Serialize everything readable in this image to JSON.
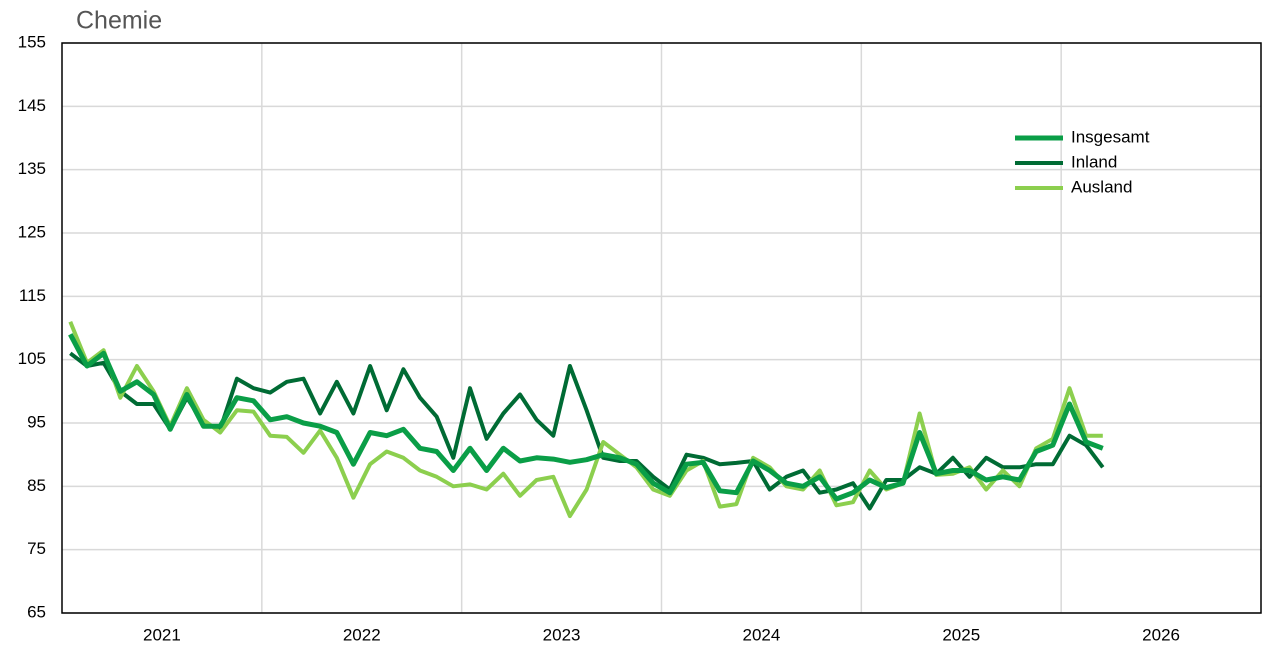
{
  "chart_data": {
    "type": "line",
    "title": "Chemie",
    "x_labels": [
      "2021",
      "2022",
      "2023",
      "2024",
      "2025",
      "2026"
    ],
    "ylim": [
      65,
      155
    ],
    "yticks": [
      65,
      75,
      85,
      95,
      105,
      115,
      125,
      135,
      145,
      155
    ],
    "grid": true,
    "legend": "upper right",
    "series": [
      {
        "name": "Insgesamt",
        "color": "#0a9e47",
        "values": [
          109,
          104,
          106,
          100,
          101.5,
          99.5,
          94,
          99.5,
          94.5,
          94.5,
          99,
          98.5,
          95.5,
          96,
          95,
          94.5,
          93.5,
          88.5,
          93.5,
          93,
          94,
          91,
          90.5,
          87.5,
          91,
          87.5,
          91,
          89,
          89.5,
          89.3,
          88.8,
          89.2,
          90,
          89.5,
          88.5,
          85.5,
          84,
          88.5,
          88.8,
          84.3,
          84,
          89,
          87.5,
          85.5,
          85,
          86.5,
          83,
          84,
          86,
          84.8,
          85.5,
          93.5,
          87,
          87.5,
          87.5,
          86,
          86.5,
          86,
          90.5,
          91.5,
          98,
          92,
          91
        ]
      },
      {
        "name": "Inland",
        "color": "#006b34",
        "values": [
          106,
          104,
          104.5,
          100,
          98,
          98,
          94,
          99,
          95,
          94,
          102,
          100.5,
          99.8,
          101.5,
          102,
          96.5,
          101.5,
          96.5,
          104,
          97,
          103.5,
          99,
          96,
          89.5,
          100.5,
          92.5,
          96.5,
          99.5,
          95.5,
          93,
          104,
          97,
          89.5,
          89,
          89,
          86.5,
          84.5,
          90,
          89.5,
          88.5,
          88.7,
          89,
          84.5,
          86.5,
          87.5,
          84,
          84.5,
          85.5,
          81.5,
          86,
          86,
          88,
          87,
          89.5,
          86.5,
          89.5,
          88,
          88,
          88.5,
          88.5,
          93,
          91.5,
          88
        ]
      },
      {
        "name": "Ausland",
        "color": "#8ccf4e",
        "values": [
          111,
          104.5,
          106.5,
          99,
          104,
          100,
          94.5,
          100.5,
          95.5,
          93.5,
          97,
          96.8,
          93,
          92.8,
          90.3,
          93.8,
          89.5,
          83.2,
          88.5,
          90.5,
          89.5,
          87.5,
          86.5,
          85,
          85.3,
          84.5,
          87,
          83.5,
          86,
          86.5,
          80.3,
          84.5,
          92,
          90,
          88,
          84.5,
          83.5,
          87.5,
          89,
          81.8,
          82.2,
          89.5,
          88,
          85,
          84.5,
          87.5,
          82,
          82.5,
          87.5,
          84.5,
          85.5,
          96.5,
          86.8,
          87,
          88,
          84.5,
          87.5,
          85,
          91,
          92.5,
          100.5,
          93,
          93
        ]
      }
    ]
  }
}
